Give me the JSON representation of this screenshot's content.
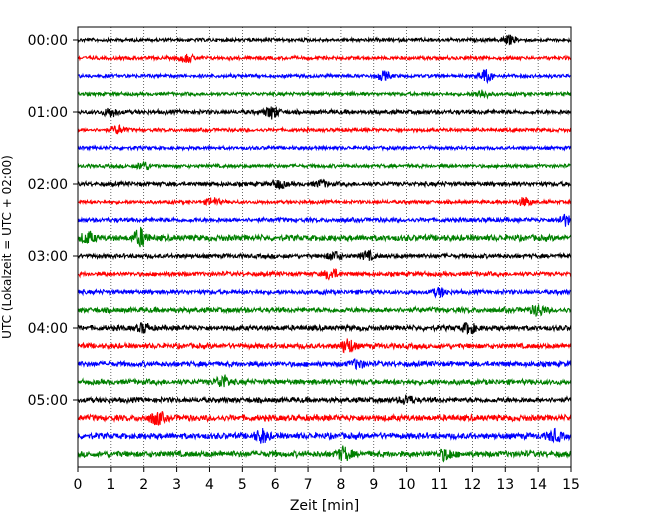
{
  "chart_data": {
    "type": "line",
    "title": "",
    "xlabel": "Zeit  [min]",
    "ylabel": "UTC (Lokalzeit = UTC + 02:00)",
    "xlim": [
      0,
      15
    ],
    "x_ticks": [
      "0",
      "1",
      "2",
      "3",
      "4",
      "5",
      "6",
      "7",
      "8",
      "9",
      "10",
      "11",
      "12",
      "13",
      "14",
      "15"
    ],
    "y_tick_labels": [
      "00:00",
      "01:00",
      "02:00",
      "03:00",
      "04:00",
      "05:00"
    ],
    "grid": "vertical dotted",
    "trace_interval_min": 15,
    "trace_colors": [
      "#000000",
      "#ff0000",
      "#0000ff",
      "#008000"
    ],
    "series": [
      {
        "start": "00:00",
        "color": "#000000",
        "amplitude": 2,
        "events": [
          {
            "x": 13.1,
            "amp": 4
          }
        ]
      },
      {
        "start": "00:15",
        "color": "#ff0000",
        "amplitude": 2,
        "events": [
          {
            "x": 3.3,
            "amp": 4
          }
        ]
      },
      {
        "start": "00:30",
        "color": "#0000ff",
        "amplitude": 2,
        "events": [
          {
            "x": 9.3,
            "amp": 4
          },
          {
            "x": 12.4,
            "amp": 6
          }
        ]
      },
      {
        "start": "00:45",
        "color": "#008000",
        "amplitude": 2,
        "events": [
          {
            "x": 12.3,
            "amp": 4
          }
        ]
      },
      {
        "start": "01:00",
        "color": "#000000",
        "amplitude": 2.5,
        "events": [
          {
            "x": 1.0,
            "amp": 4
          },
          {
            "x": 5.9,
            "amp": 6
          }
        ]
      },
      {
        "start": "01:15",
        "color": "#ff0000",
        "amplitude": 2,
        "events": [
          {
            "x": 1.2,
            "amp": 4
          }
        ]
      },
      {
        "start": "01:30",
        "color": "#0000ff",
        "amplitude": 2,
        "events": []
      },
      {
        "start": "01:45",
        "color": "#008000",
        "amplitude": 2,
        "events": [
          {
            "x": 2.0,
            "amp": 4
          }
        ]
      },
      {
        "start": "02:00",
        "color": "#000000",
        "amplitude": 2.5,
        "events": [
          {
            "x": 6.1,
            "amp": 4
          },
          {
            "x": 7.4,
            "amp": 3
          }
        ]
      },
      {
        "start": "02:15",
        "color": "#ff0000",
        "amplitude": 2,
        "events": [
          {
            "x": 4.1,
            "amp": 4
          },
          {
            "x": 13.6,
            "amp": 4
          }
        ]
      },
      {
        "start": "02:30",
        "color": "#0000ff",
        "amplitude": 2.5,
        "events": [
          {
            "x": 14.8,
            "amp": 5
          }
        ]
      },
      {
        "start": "02:45",
        "color": "#008000",
        "amplitude": 3.5,
        "events": [
          {
            "x": 1.9,
            "amp": 8
          },
          {
            "x": 0.3,
            "amp": 5
          }
        ]
      },
      {
        "start": "03:00",
        "color": "#000000",
        "amplitude": 2.5,
        "events": [
          {
            "x": 7.8,
            "amp": 4
          },
          {
            "x": 8.8,
            "amp": 4
          }
        ]
      },
      {
        "start": "03:15",
        "color": "#ff0000",
        "amplitude": 2.5,
        "events": [
          {
            "x": 7.7,
            "amp": 5
          }
        ]
      },
      {
        "start": "03:30",
        "color": "#0000ff",
        "amplitude": 2.5,
        "events": [
          {
            "x": 11.0,
            "amp": 4
          }
        ]
      },
      {
        "start": "03:45",
        "color": "#008000",
        "amplitude": 3,
        "events": [
          {
            "x": 14.0,
            "amp": 5
          }
        ]
      },
      {
        "start": "04:00",
        "color": "#000000",
        "amplitude": 3,
        "events": [
          {
            "x": 11.9,
            "amp": 5
          },
          {
            "x": 2.0,
            "amp": 4
          }
        ]
      },
      {
        "start": "04:15",
        "color": "#ff0000",
        "amplitude": 3,
        "events": [
          {
            "x": 8.2,
            "amp": 7
          }
        ]
      },
      {
        "start": "04:30",
        "color": "#0000ff",
        "amplitude": 3,
        "events": [
          {
            "x": 8.5,
            "amp": 4
          }
        ]
      },
      {
        "start": "04:45",
        "color": "#008000",
        "amplitude": 3,
        "events": [
          {
            "x": 4.4,
            "amp": 6
          }
        ]
      },
      {
        "start": "05:00",
        "color": "#000000",
        "amplitude": 3,
        "events": [
          {
            "x": 10.0,
            "amp": 4
          }
        ]
      },
      {
        "start": "05:15",
        "color": "#ff0000",
        "amplitude": 3.5,
        "events": [
          {
            "x": 2.4,
            "amp": 6
          }
        ]
      },
      {
        "start": "05:30",
        "color": "#0000ff",
        "amplitude": 3.5,
        "events": [
          {
            "x": 5.6,
            "amp": 6
          },
          {
            "x": 14.5,
            "amp": 5
          }
        ]
      },
      {
        "start": "05:45",
        "color": "#008000",
        "amplitude": 3.5,
        "events": [
          {
            "x": 8.1,
            "amp": 6
          },
          {
            "x": 11.2,
            "amp": 5
          }
        ]
      }
    ]
  }
}
